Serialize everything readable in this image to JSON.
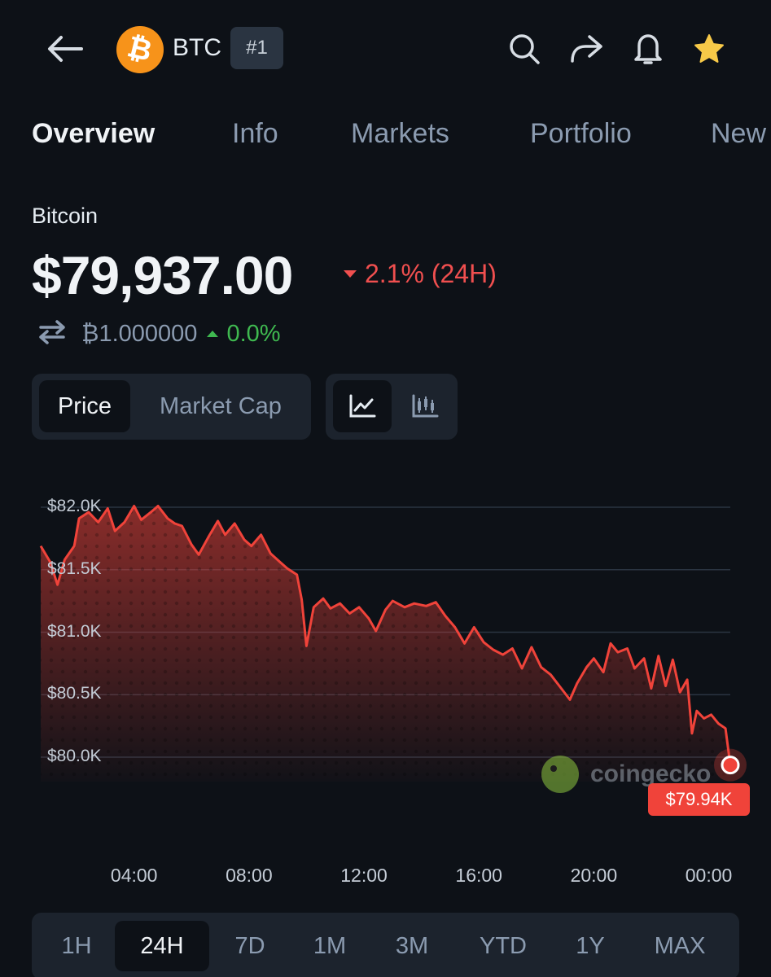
{
  "header": {
    "coin_symbol": "BTC",
    "rank_badge": "#1",
    "logo_glyph": "₿",
    "icons": [
      "back-arrow-icon",
      "search-icon",
      "share-icon",
      "bell-icon",
      "star-icon"
    ]
  },
  "tabs": [
    {
      "label": "Overview",
      "active": true
    },
    {
      "label": "Info",
      "active": false
    },
    {
      "label": "Markets",
      "active": false
    },
    {
      "label": "Portfolio",
      "active": false
    },
    {
      "label": "New",
      "active": false
    }
  ],
  "coin": {
    "name": "Bitcoin",
    "price": "$79,937.00",
    "change_24h": "2.1% (24H)",
    "btc_value": "₿1.000000",
    "btc_change": "0.0%"
  },
  "toggles": {
    "price": "Price",
    "market_cap": "Market Cap"
  },
  "chart_data": {
    "type": "area",
    "y_ticks": [
      "$82.0K",
      "$81.5K",
      "$81.0K",
      "$80.5K",
      "$80.0K"
    ],
    "x_ticks": [
      "04:00",
      "08:00",
      "12:00",
      "16:00",
      "20:00",
      "00:00"
    ],
    "ylim": [
      79850,
      82050
    ],
    "color": "#f0433a",
    "points": [
      {
        "t": "00:45",
        "v": 81690
      },
      {
        "t": "01:05",
        "v": 81560
      },
      {
        "t": "01:20",
        "v": 81380
      },
      {
        "t": "01:35",
        "v": 81580
      },
      {
        "t": "01:55",
        "v": 81690
      },
      {
        "t": "02:05",
        "v": 81910
      },
      {
        "t": "02:25",
        "v": 81960
      },
      {
        "t": "02:45",
        "v": 81880
      },
      {
        "t": "03:05",
        "v": 81990
      },
      {
        "t": "03:20",
        "v": 81810
      },
      {
        "t": "03:40",
        "v": 81880
      },
      {
        "t": "04:00",
        "v": 82010
      },
      {
        "t": "04:15",
        "v": 81900
      },
      {
        "t": "04:35",
        "v": 81960
      },
      {
        "t": "04:50",
        "v": 82010
      },
      {
        "t": "05:10",
        "v": 81910
      },
      {
        "t": "05:25",
        "v": 81870
      },
      {
        "t": "05:40",
        "v": 81850
      },
      {
        "t": "06:00",
        "v": 81700
      },
      {
        "t": "06:15",
        "v": 81620
      },
      {
        "t": "06:35",
        "v": 81760
      },
      {
        "t": "06:55",
        "v": 81890
      },
      {
        "t": "07:10",
        "v": 81780
      },
      {
        "t": "07:30",
        "v": 81870
      },
      {
        "t": "07:50",
        "v": 81740
      },
      {
        "t": "08:05",
        "v": 81690
      },
      {
        "t": "08:25",
        "v": 81780
      },
      {
        "t": "08:45",
        "v": 81630
      },
      {
        "t": "09:05",
        "v": 81560
      },
      {
        "t": "09:20",
        "v": 81510
      },
      {
        "t": "09:40",
        "v": 81460
      },
      {
        "t": "09:50",
        "v": 81260
      },
      {
        "t": "10:00",
        "v": 80890
      },
      {
        "t": "10:15",
        "v": 81200
      },
      {
        "t": "10:35",
        "v": 81270
      },
      {
        "t": "10:50",
        "v": 81190
      },
      {
        "t": "11:10",
        "v": 81230
      },
      {
        "t": "11:30",
        "v": 81150
      },
      {
        "t": "11:50",
        "v": 81200
      },
      {
        "t": "12:10",
        "v": 81110
      },
      {
        "t": "12:25",
        "v": 81010
      },
      {
        "t": "12:45",
        "v": 81180
      },
      {
        "t": "13:00",
        "v": 81250
      },
      {
        "t": "13:25",
        "v": 81200
      },
      {
        "t": "13:45",
        "v": 81230
      },
      {
        "t": "14:10",
        "v": 81210
      },
      {
        "t": "14:30",
        "v": 81240
      },
      {
        "t": "14:50",
        "v": 81130
      },
      {
        "t": "15:10",
        "v": 81040
      },
      {
        "t": "15:30",
        "v": 80910
      },
      {
        "t": "15:50",
        "v": 81040
      },
      {
        "t": "16:10",
        "v": 80920
      },
      {
        "t": "16:30",
        "v": 80860
      },
      {
        "t": "16:50",
        "v": 80820
      },
      {
        "t": "17:10",
        "v": 80870
      },
      {
        "t": "17:30",
        "v": 80710
      },
      {
        "t": "17:50",
        "v": 80880
      },
      {
        "t": "18:10",
        "v": 80720
      },
      {
        "t": "18:30",
        "v": 80660
      },
      {
        "t": "18:50",
        "v": 80560
      },
      {
        "t": "19:10",
        "v": 80460
      },
      {
        "t": "19:25",
        "v": 80590
      },
      {
        "t": "19:45",
        "v": 80720
      },
      {
        "t": "20:00",
        "v": 80790
      },
      {
        "t": "20:20",
        "v": 80680
      },
      {
        "t": "20:35",
        "v": 80910
      },
      {
        "t": "20:50",
        "v": 80840
      },
      {
        "t": "21:10",
        "v": 80870
      },
      {
        "t": "21:25",
        "v": 80710
      },
      {
        "t": "21:45",
        "v": 80790
      },
      {
        "t": "22:00",
        "v": 80550
      },
      {
        "t": "22:15",
        "v": 80810
      },
      {
        "t": "22:30",
        "v": 80570
      },
      {
        "t": "22:45",
        "v": 80780
      },
      {
        "t": "23:00",
        "v": 80520
      },
      {
        "t": "23:15",
        "v": 80620
      },
      {
        "t": "23:25",
        "v": 80190
      },
      {
        "t": "23:35",
        "v": 80370
      },
      {
        "t": "23:50",
        "v": 80310
      },
      {
        "t": "00:05",
        "v": 80340
      },
      {
        "t": "00:20",
        "v": 80270
      },
      {
        "t": "00:35",
        "v": 80230
      },
      {
        "t": "00:45",
        "v": 79937
      }
    ],
    "last_label": "$79.94K",
    "watermark": "coingecko",
    "grid": true
  },
  "range": {
    "options": [
      "1H",
      "24H",
      "7D",
      "1M",
      "3M",
      "YTD",
      "1Y",
      "MAX"
    ],
    "selected": "24H"
  }
}
